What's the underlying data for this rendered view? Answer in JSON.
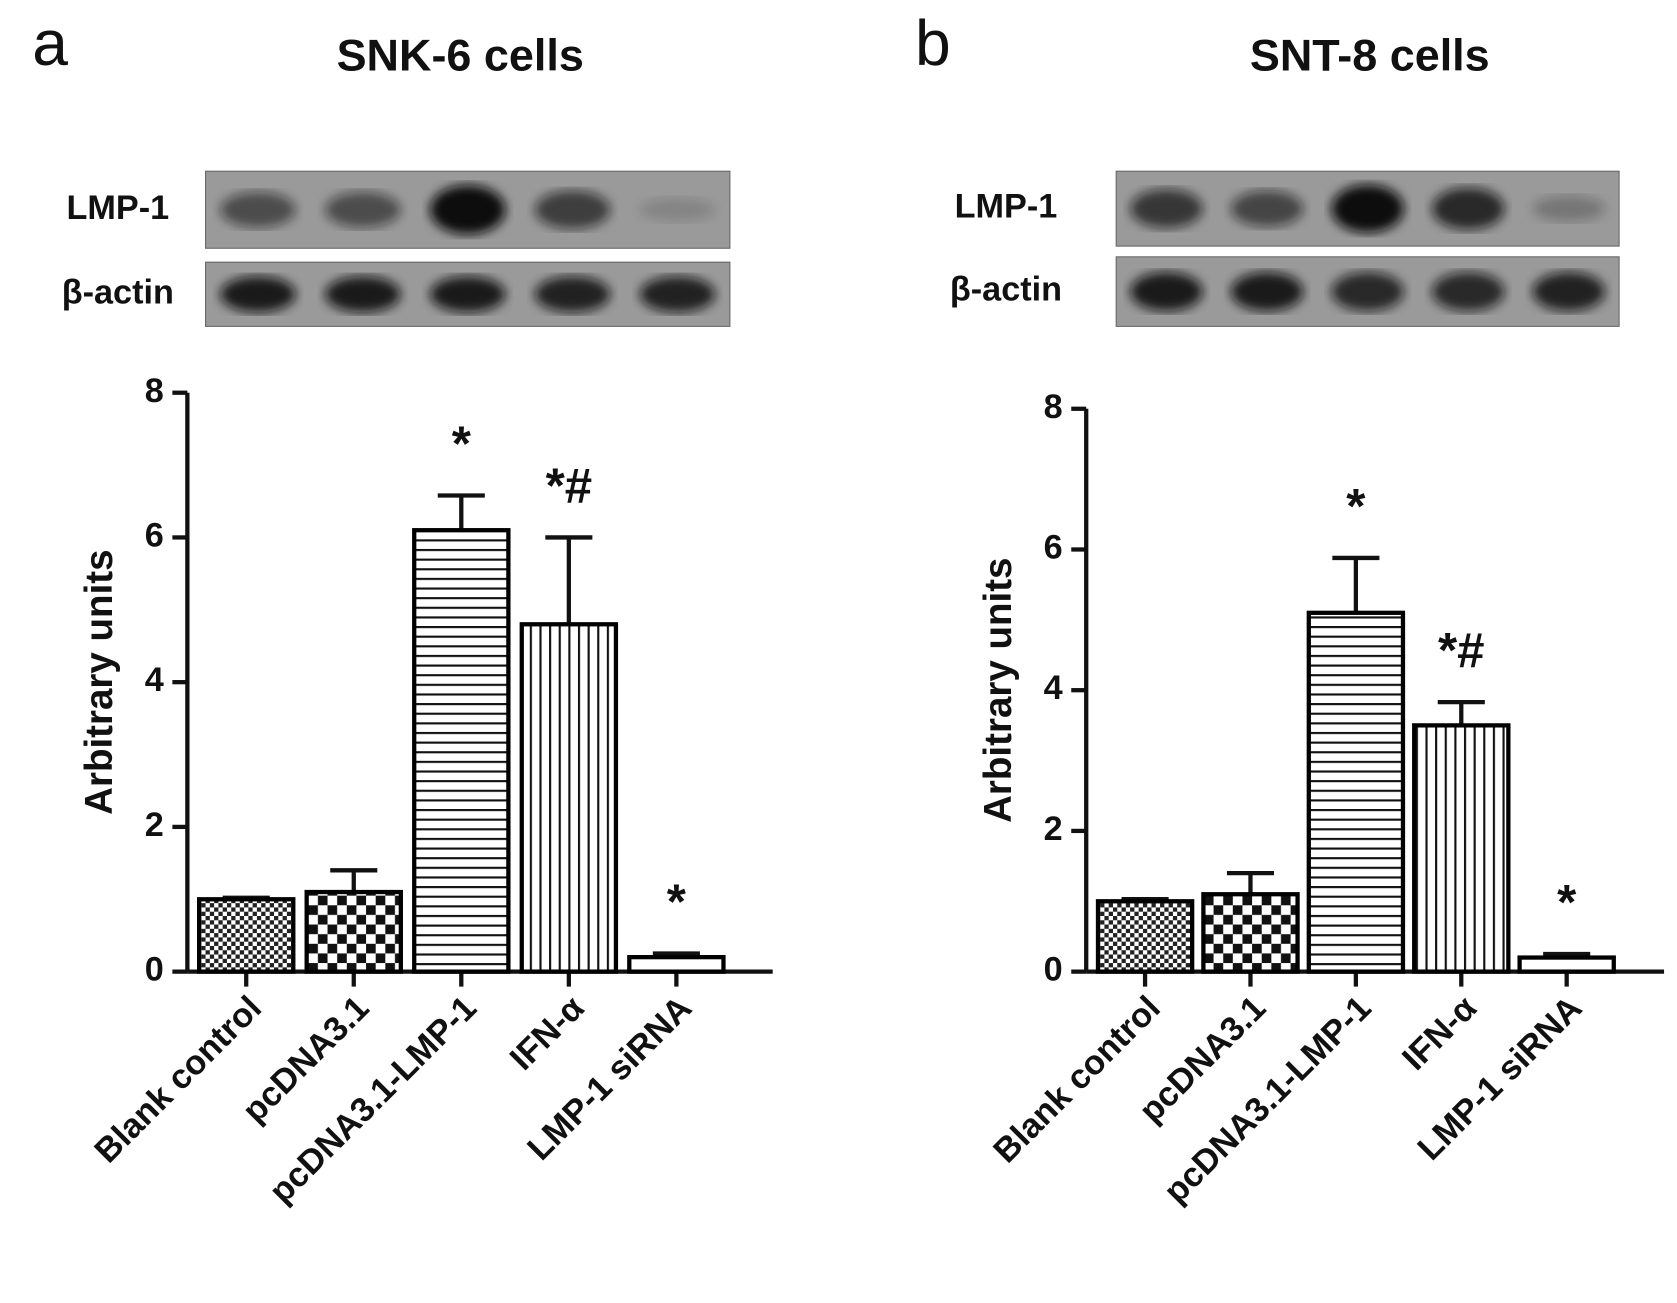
{
  "chart_data": [
    {
      "type": "bar",
      "panel_label": "a",
      "title": "SNK-6 cells",
      "blot_labels": [
        "LMP-1",
        "β-actin"
      ],
      "ylabel": "Arbitrary units",
      "categories": [
        "Blank control",
        "pcDNA3.1",
        "pcDNA3.1-LMP-1",
        "IFN-α",
        "LMP-1 siRNA"
      ],
      "values": [
        1.0,
        1.1,
        6.1,
        4.8,
        0.2
      ],
      "errors": [
        0.02,
        0.3,
        0.48,
        1.2,
        0.05
      ],
      "annotations": [
        null,
        null,
        "*",
        "*#",
        "*"
      ],
      "patterns": [
        "fine-check",
        "coarse-check",
        "horizontal",
        "vertical",
        "none"
      ],
      "color": "#000000",
      "ylim": [
        0,
        8
      ],
      "yticks": [
        0,
        2,
        4,
        6,
        8
      ]
    },
    {
      "type": "bar",
      "panel_label": "b",
      "title": "SNT-8 cells",
      "blot_labels": [
        "LMP-1",
        "β-actin"
      ],
      "ylabel": "Arbitrary units",
      "categories": [
        "Blank control",
        "pcDNA3.1",
        "pcDNA3.1-LMP-1",
        "IFN-α",
        "LMP-1 siRNA"
      ],
      "values": [
        1.0,
        1.1,
        5.1,
        3.5,
        0.2
      ],
      "errors": [
        0.03,
        0.3,
        0.78,
        0.33,
        0.05
      ],
      "annotations": [
        null,
        null,
        "*",
        "*#",
        "*"
      ],
      "patterns": [
        "fine-check",
        "coarse-check",
        "horizontal",
        "vertical",
        "none"
      ],
      "color": "#000000",
      "ylim": [
        0,
        8
      ],
      "yticks": [
        0,
        2,
        4,
        6,
        8
      ]
    }
  ]
}
